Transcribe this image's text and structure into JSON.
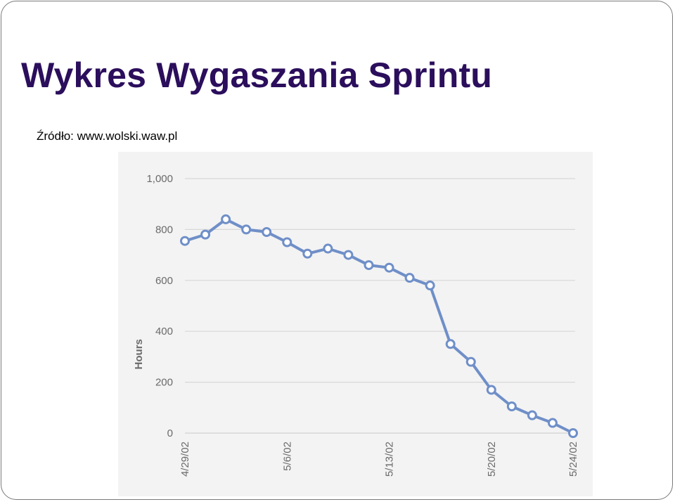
{
  "slide": {
    "title": "Wykres Wygaszania Sprintu",
    "source": "Źródło: www.wolski.waw.pl"
  },
  "colors": {
    "title": "#2b0e5c",
    "series": "#6f8fc8",
    "grid": "#d7d7d7",
    "chart_bg": "#f3f3f3"
  },
  "chart_data": {
    "type": "line",
    "title": "",
    "xlabel": "",
    "ylabel": "Hours",
    "ylim": [
      0,
      1000
    ],
    "y_ticks": [
      0,
      200,
      400,
      600,
      800,
      1000
    ],
    "y_tick_labels": [
      "0",
      "200",
      "400",
      "600",
      "800",
      "1,000"
    ],
    "grid": true,
    "x": [
      "4/29/02",
      "4/30/02",
      "5/1/02",
      "5/2/02",
      "5/3/02",
      "5/6/02",
      "5/7/02",
      "5/8/02",
      "5/9/02",
      "5/10/02",
      "5/13/02",
      "5/14/02",
      "5/15/02",
      "5/16/02",
      "5/17/02",
      "5/20/02",
      "5/21/02",
      "5/22/02",
      "5/23/02",
      "5/24/02"
    ],
    "x_tick_labels": [
      "4/29/02",
      "5/6/02",
      "5/13/02",
      "5/20/02",
      "5/24/02"
    ],
    "series": [
      {
        "values": [
          755,
          780,
          840,
          800,
          790,
          750,
          705,
          725,
          700,
          660,
          650,
          610,
          580,
          350,
          280,
          170,
          105,
          70,
          40,
          0
        ]
      }
    ]
  }
}
